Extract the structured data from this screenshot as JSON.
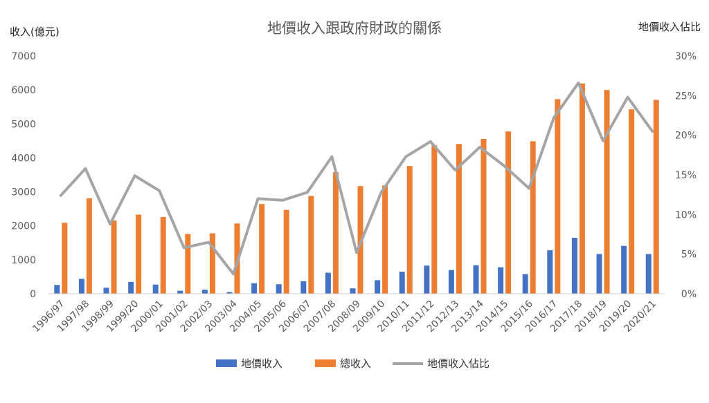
{
  "chart_data": {
    "type": "bar",
    "title": "地價收入跟政府財政的關係",
    "ylabel_left": "收入(億元)",
    "ylabel_right": "地價收入佔比",
    "ylim_left": [
      0,
      7000
    ],
    "yticks_left": [
      "0",
      "1000",
      "2000",
      "3000",
      "4000",
      "5000",
      "6000",
      "7000"
    ],
    "ylim_right": [
      0,
      30
    ],
    "yticks_right": [
      "0%",
      "5%",
      "10%",
      "15%",
      "20%",
      "25%",
      "30%"
    ],
    "grid": false,
    "legend_position": "bottom",
    "categories": [
      "1996/97",
      "1997/98",
      "1998/99",
      "1999/20",
      "2000/01",
      "2001/02",
      "2002/03",
      "2003/04",
      "2004/05",
      "2005/06",
      "2006/07",
      "2007/08",
      "2008/09",
      "2009/10",
      "2010/11",
      "2011/12",
      "2012/13",
      "2013/14",
      "2014/15",
      "2015/16",
      "2016/17",
      "2017/18",
      "2018/19",
      "2019/20",
      "2020/21"
    ],
    "series": [
      {
        "name": "地價收入",
        "type": "bar",
        "axis": "left",
        "color": "#4472C4",
        "values": [
          260,
          440,
          180,
          350,
          270,
          90,
          120,
          50,
          310,
          280,
          370,
          620,
          160,
          400,
          650,
          830,
          700,
          840,
          780,
          580,
          1280,
          1650,
          1170,
          1410,
          1170
        ]
      },
      {
        "name": "總收入",
        "type": "bar",
        "axis": "left",
        "color": "#ED7D31",
        "values": [
          2090,
          2810,
          2160,
          2330,
          2260,
          1760,
          1780,
          2070,
          2640,
          2470,
          2880,
          3580,
          3170,
          3190,
          3760,
          4370,
          4410,
          4560,
          4780,
          4490,
          5730,
          6190,
          6000,
          5430,
          5710
        ]
      },
      {
        "name": "地價收入佔比",
        "type": "line",
        "axis": "right",
        "color": "#A5A5A5",
        "values": [
          12.4,
          15.8,
          8.8,
          14.9,
          13.0,
          5.8,
          6.5,
          2.5,
          12.0,
          11.8,
          12.8,
          17.3,
          5.2,
          12.8,
          17.3,
          19.2,
          15.6,
          18.5,
          16.1,
          13.3,
          22.2,
          26.6,
          19.3,
          24.8,
          20.5
        ]
      }
    ]
  }
}
